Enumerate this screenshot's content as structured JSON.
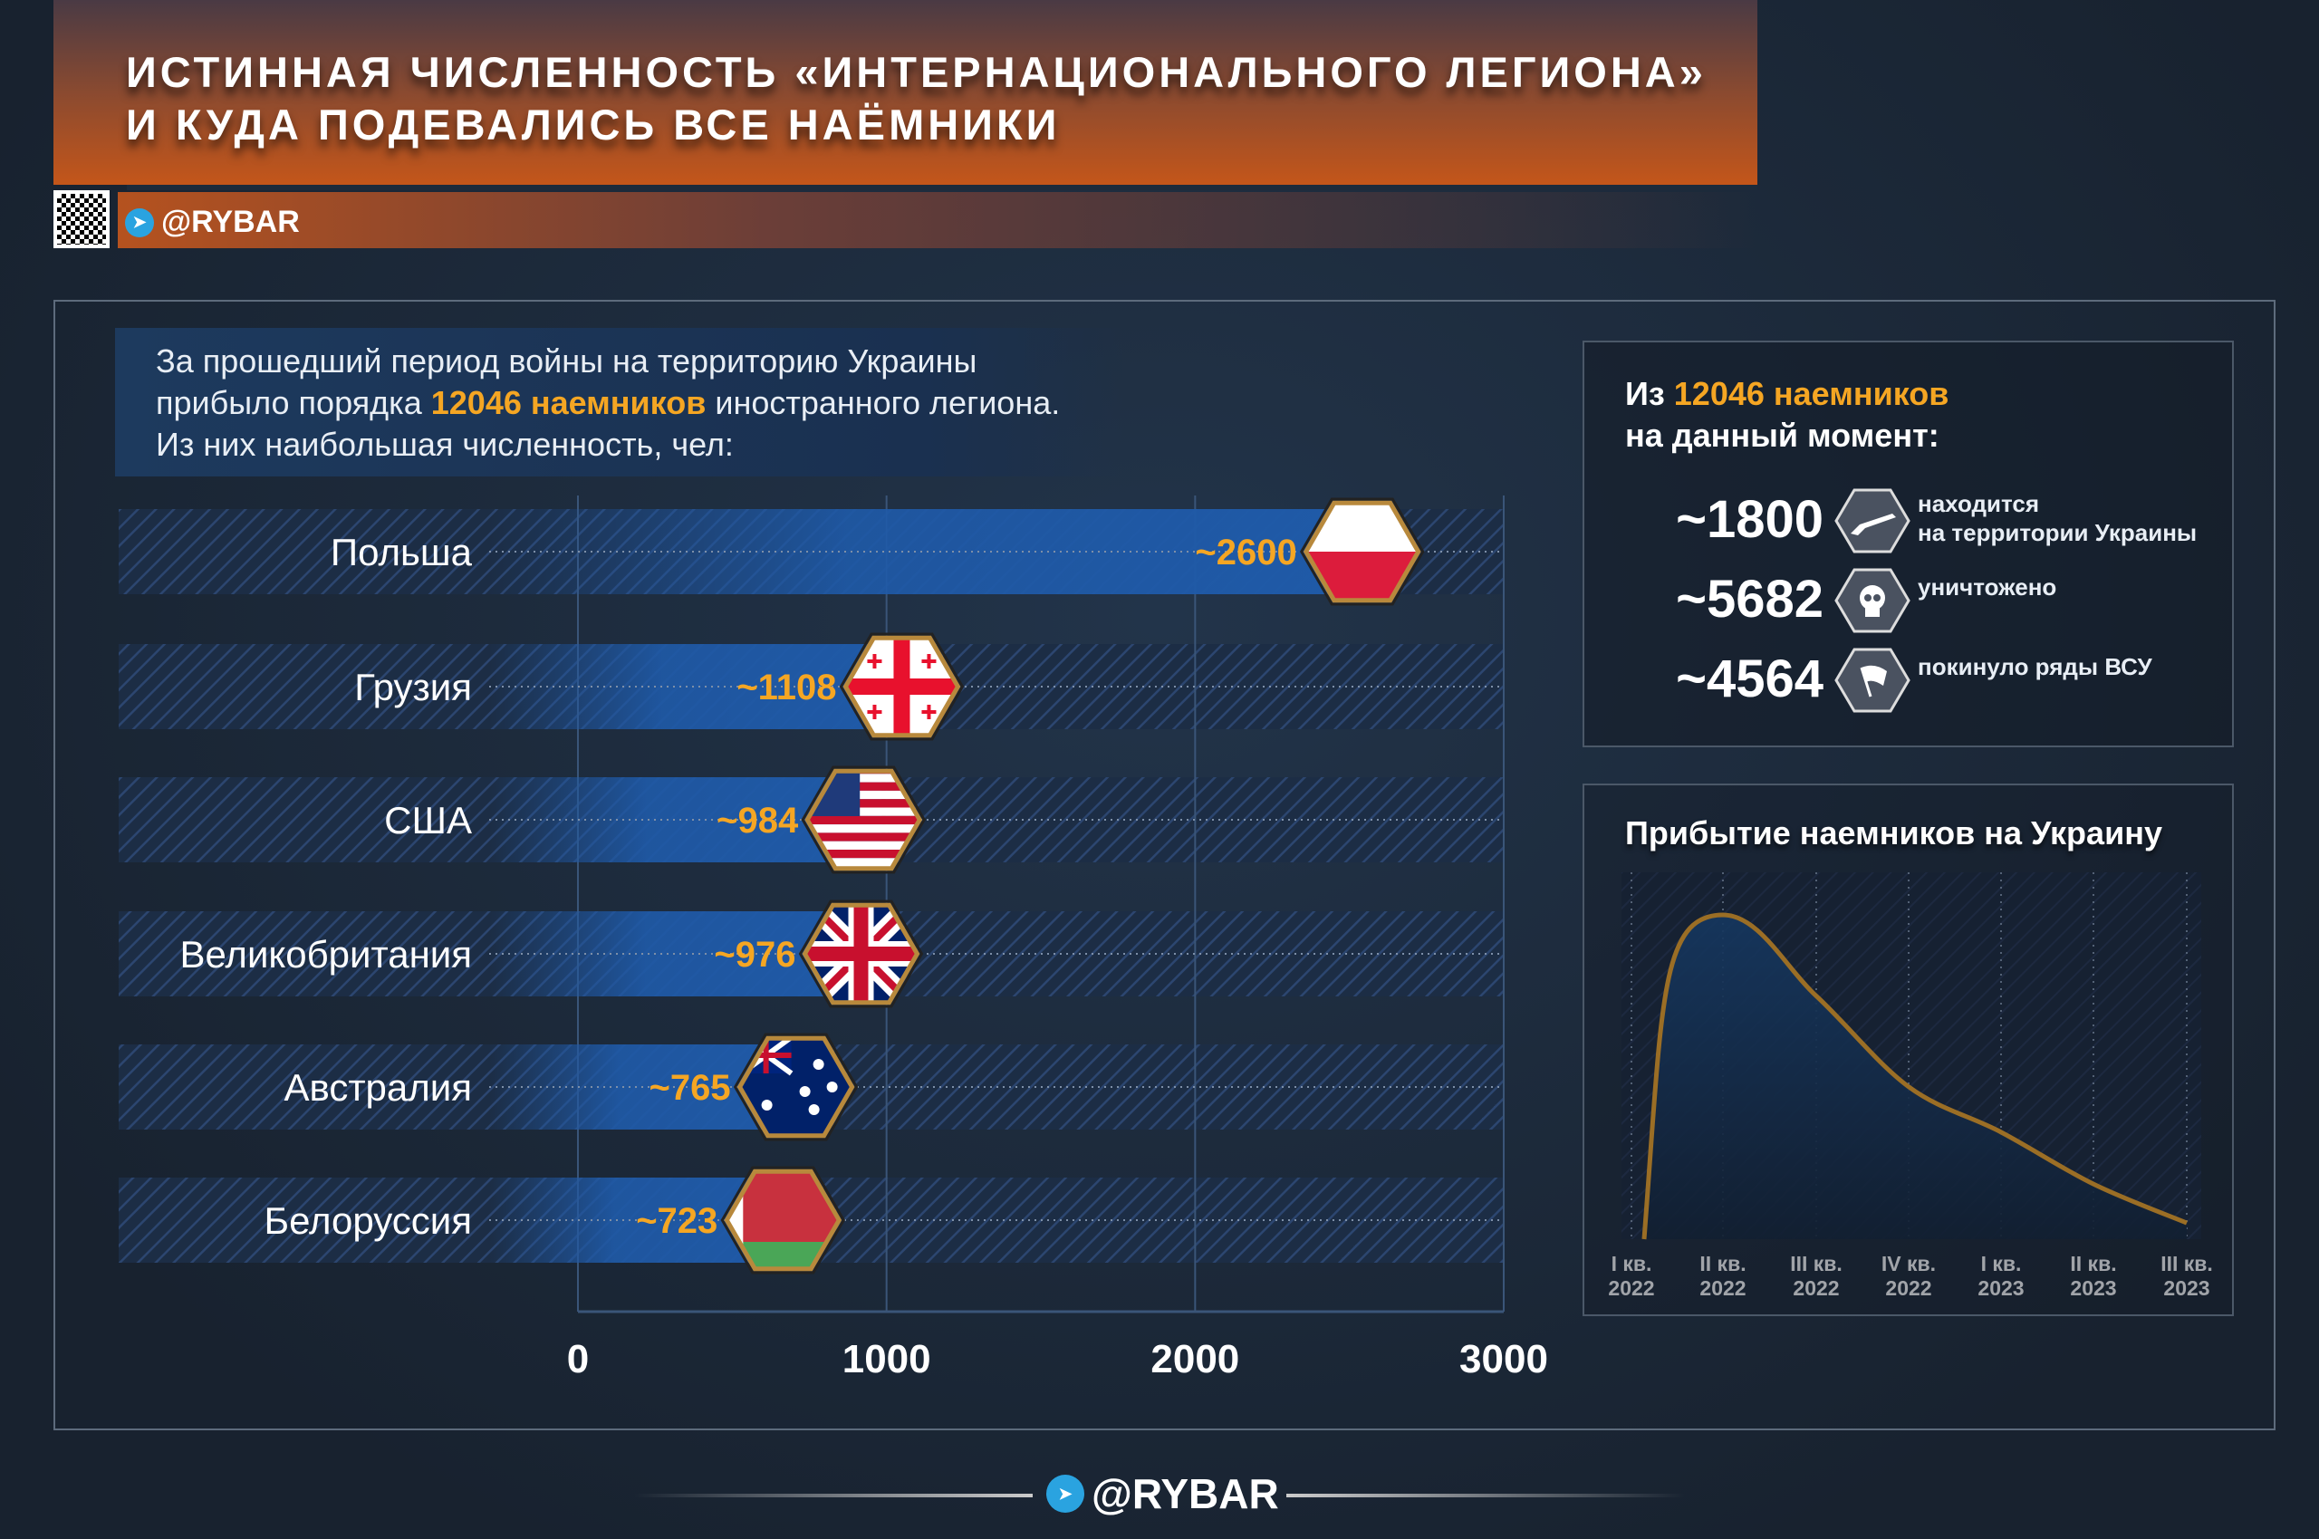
{
  "header": {
    "title_line1": "ИСТИННАЯ ЧИСЛЕННОСТЬ «ИНТЕРНАЦИОНАЛЬНОГО ЛЕГИОНА»",
    "title_line2": "И КУДА ПОДЕВАЛИСЬ ВСЕ НАЁМНИКИ",
    "brand": "@RYBAR"
  },
  "intro": {
    "line1": "За прошедший период войны на территорию Украины",
    "line2_a": "прибыло порядка ",
    "line2_b": "12046 наемников",
    "line2_c": " иностранного легиона.",
    "line3": "Из них наибольшая численность, чел:"
  },
  "chart_data": [
    {
      "type": "bar",
      "orientation": "horizontal",
      "categories": [
        "Польша",
        "Грузия",
        "США",
        "Великобритания",
        "Австралия",
        "Белоруссия"
      ],
      "values": [
        2600,
        1108,
        984,
        976,
        765,
        723
      ],
      "value_labels": [
        "~2600",
        "~1108",
        "~984",
        "~976",
        "~765",
        "~723"
      ],
      "flags": [
        "poland-flag",
        "georgia-flag",
        "usa-flag",
        "uk-flag",
        "australia-flag",
        "belarus-flag"
      ],
      "xlim": [
        0,
        3000
      ],
      "xticks": [
        "0",
        "1000",
        "2000",
        "3000"
      ],
      "grid": true,
      "bar_color": "#1f5aa8",
      "label_color": "#f5a623"
    },
    {
      "type": "area",
      "title": "Прибытие наемников на Украину",
      "categories": [
        "I кв. 2022",
        "II кв. 2022",
        "III кв. 2022",
        "IV кв. 2022",
        "I кв. 2023",
        "II кв. 2023",
        "III кв. 2023"
      ],
      "tick_lines": [
        [
          "I кв.",
          "2022"
        ],
        [
          "II кв.",
          "2022"
        ],
        [
          "III кв.",
          "2022"
        ],
        [
          "IV кв.",
          "2022"
        ],
        [
          "I кв.",
          "2023"
        ],
        [
          "II кв.",
          "2023"
        ],
        [
          "III кв.",
          "2023"
        ]
      ],
      "values": [
        0,
        100,
        75,
        47,
        33,
        17,
        5
      ],
      "line_color": "#f5a623",
      "fill_color": "#163e6e",
      "y_axis_shown": false
    }
  ],
  "status": {
    "title_a": "Из ",
    "title_b": "12046 наемников",
    "title_c": "на данный момент:",
    "items": [
      {
        "value": "~1800",
        "icon": "rifle-icon",
        "label1": "находится",
        "label2": "на территории Украины"
      },
      {
        "value": "~5682",
        "icon": "skull-icon",
        "label1": "уничтожено",
        "label2": ""
      },
      {
        "value": "~4564",
        "icon": "white-flag-icon",
        "label1": "покинуло ряды ВСУ",
        "label2": ""
      }
    ]
  },
  "footer": {
    "brand": "@RYBAR"
  },
  "colors": {
    "accent": "#f5a623",
    "header_orange": "#c4561a",
    "background": "#1b2838"
  }
}
